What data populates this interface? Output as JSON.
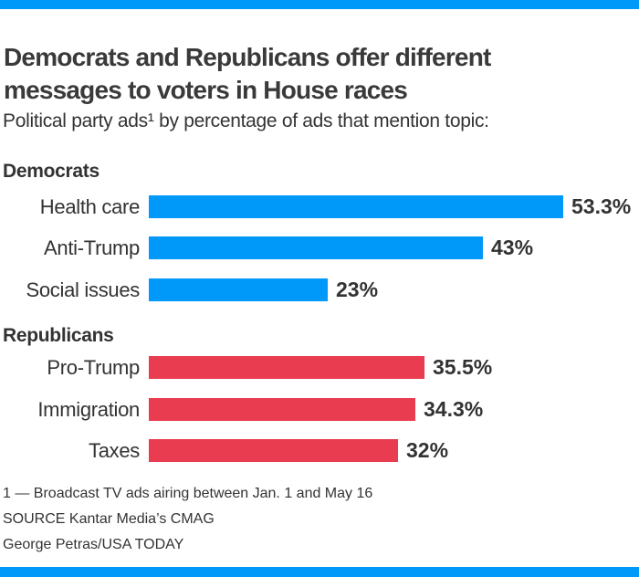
{
  "brand": {
    "accent_color": "#0099fa"
  },
  "chart_data": {
    "type": "bar",
    "orientation": "horizontal",
    "title": "Democrats and Republicans offer different messages to voters in House races",
    "title_lines": [
      "Democrats and Republicans offer different",
      "messages to voters in House races"
    ],
    "subtitle": "Political party ads¹ by percentage of ads that mention topic:",
    "value_unit": "%",
    "xlim": [
      0,
      56
    ],
    "grid": false,
    "value_labels": true,
    "groups": [
      {
        "label": "Democrats",
        "color": "#0099fa",
        "bars": [
          {
            "category": "Health care",
            "value": 53.3,
            "value_label": "53.3%"
          },
          {
            "category": "Anti-Trump",
            "value": 43,
            "value_label": "43%"
          },
          {
            "category": "Social issues",
            "value": 23,
            "value_label": "23%"
          }
        ]
      },
      {
        "label": "Republicans",
        "color": "#ea3c50",
        "bars": [
          {
            "category": "Pro-Trump",
            "value": 35.5,
            "value_label": "35.5%"
          },
          {
            "category": "Immigration",
            "value": 34.3,
            "value_label": "34.3%"
          },
          {
            "category": "Taxes",
            "value": 32,
            "value_label": "32%"
          }
        ]
      }
    ]
  },
  "footer": {
    "footnote": "1 — Broadcast TV ads airing between Jan. 1 and May 16",
    "source": "SOURCE Kantar Media’s CMAG",
    "credit": "George Petras/USA TODAY"
  }
}
